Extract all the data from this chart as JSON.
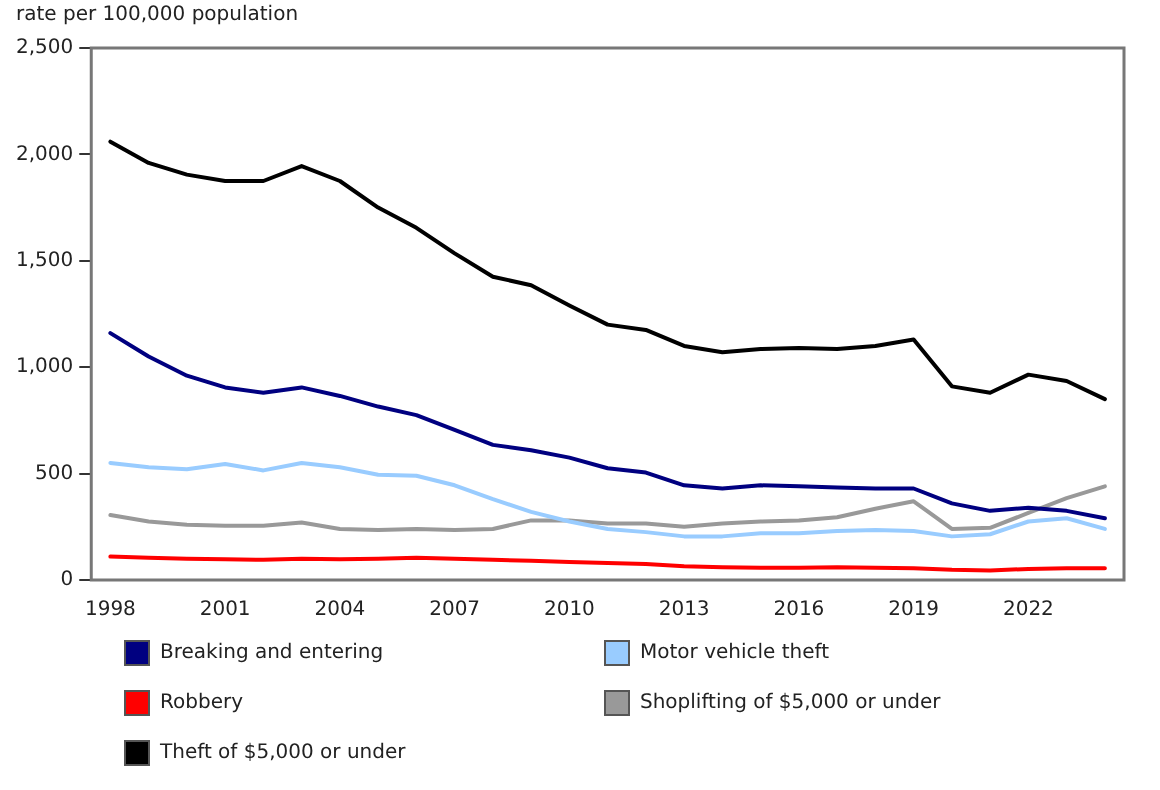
{
  "chart_data": {
    "type": "line",
    "ylabel": "rate per 100,000 population",
    "categories": [
      "1998",
      null,
      null,
      "2001",
      null,
      null,
      "2004",
      null,
      null,
      "2007",
      null,
      null,
      "2010",
      null,
      null,
      "2013",
      null,
      null,
      "2016",
      null,
      null,
      "2019",
      null,
      null,
      "2022",
      null,
      null
    ],
    "series": [
      {
        "name": "Breaking and entering",
        "color": "#000080",
        "values": [
          1160,
          1050,
          960,
          905,
          880,
          905,
          865,
          815,
          775,
          705,
          635,
          610,
          575,
          525,
          505,
          445,
          430,
          445,
          440,
          435,
          430,
          430,
          360,
          325,
          340,
          325,
          290
        ]
      },
      {
        "name": "Motor vehicle theft",
        "color": "#99ccff",
        "values": [
          550,
          530,
          520,
          545,
          515,
          550,
          530,
          495,
          490,
          445,
          380,
          320,
          275,
          240,
          225,
          205,
          205,
          220,
          220,
          230,
          235,
          230,
          205,
          215,
          275,
          290,
          240
        ]
      },
      {
        "name": "Robbery",
        "color": "#ff0000",
        "values": [
          110,
          105,
          100,
          98,
          95,
          100,
          97,
          100,
          105,
          100,
          95,
          90,
          85,
          80,
          75,
          65,
          60,
          58,
          58,
          60,
          58,
          55,
          48,
          45,
          52,
          55,
          55
        ]
      },
      {
        "name": "Shoplifting of $5,000 or under",
        "color": "#999999",
        "values": [
          305,
          275,
          260,
          255,
          255,
          270,
          240,
          235,
          240,
          235,
          240,
          280,
          280,
          265,
          265,
          250,
          265,
          275,
          280,
          295,
          335,
          370,
          240,
          245,
          315,
          385,
          440
        ]
      },
      {
        "name": "Theft of $5,000 or under",
        "color": "#000000",
        "values": [
          2060,
          1960,
          1905,
          1875,
          1875,
          1945,
          1875,
          1750,
          1655,
          1535,
          1425,
          1385,
          1290,
          1200,
          1175,
          1100,
          1070,
          1085,
          1090,
          1085,
          1100,
          1130,
          910,
          880,
          965,
          935,
          850
        ]
      }
    ],
    "ylim": [
      0,
      2500
    ],
    "yticks": [
      0,
      {
        "value": 500,
        "label": "500"
      },
      {
        "value": 1000,
        "label": "1,000"
      },
      {
        "value": 1500,
        "label": "1,500"
      },
      {
        "value": 2000,
        "label": "2,000"
      },
      {
        "value": 2500,
        "label": "2,500"
      }
    ],
    "grid": false,
    "legend": "bottom",
    "marker": "none",
    "line_style": "solid"
  }
}
